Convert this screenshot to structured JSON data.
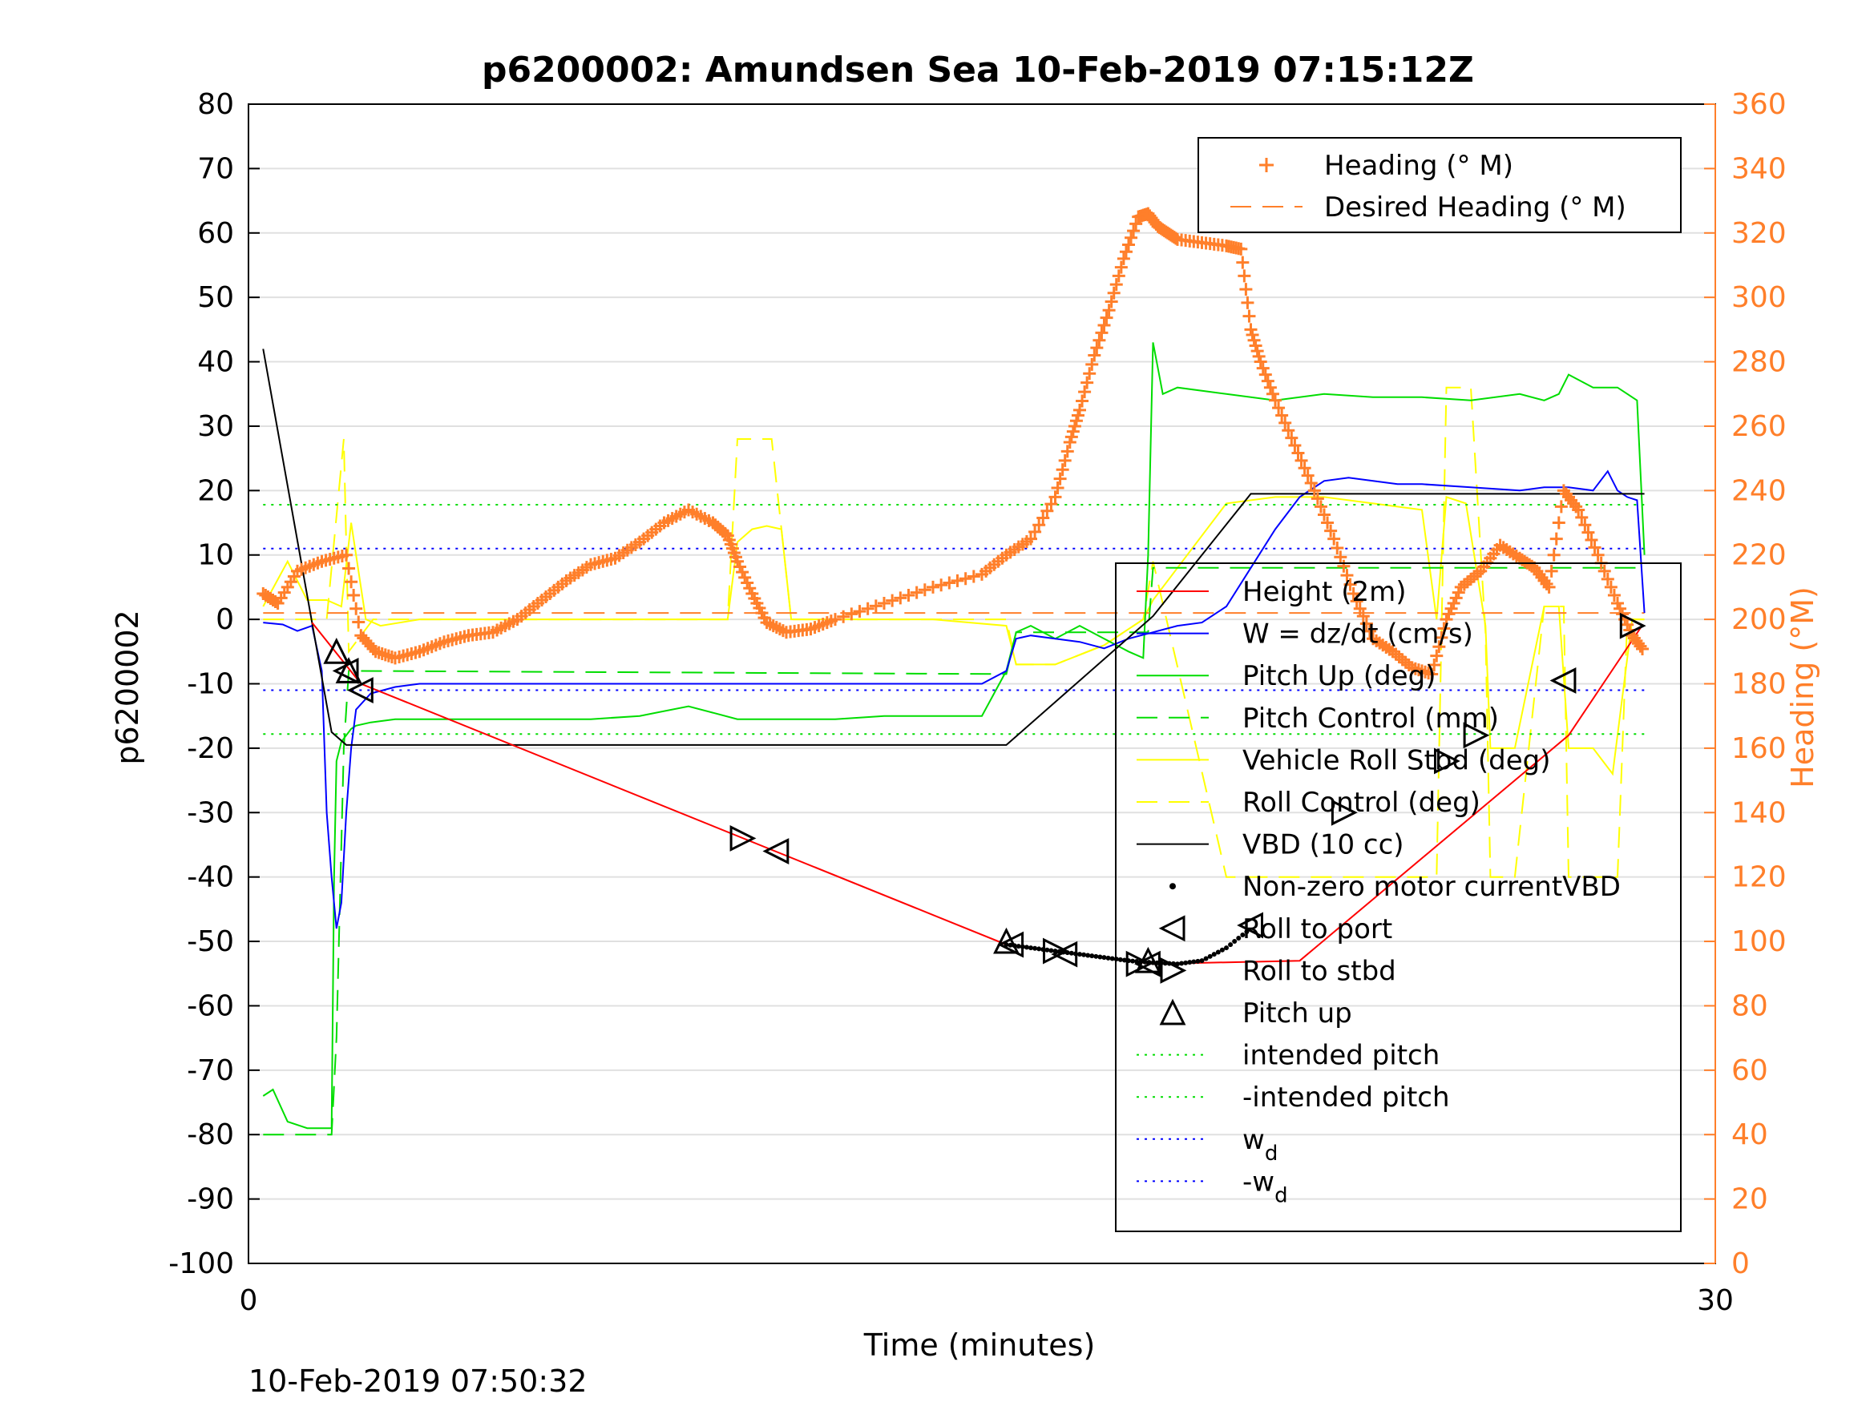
{
  "chart_data": {
    "type": "line",
    "title": "p6200002: Amundsen Sea 10-Feb-2019 07:15:12Z",
    "xlabel": "Time (minutes)",
    "ylabel": "p6200002",
    "y2label": "Heading (°M)",
    "xlim": [
      0,
      30
    ],
    "ylim": [
      -100,
      80
    ],
    "y2lim": [
      0,
      360
    ],
    "x_ticks": [
      "0",
      "30"
    ],
    "y_ticks": [
      "80",
      "70",
      "60",
      "50",
      "40",
      "30",
      "20",
      "10",
      "0",
      "-10",
      "-20",
      "-30",
      "-40",
      "-50",
      "-60",
      "-70",
      "-80",
      "-90",
      "-100"
    ],
    "y2_ticks": [
      "360",
      "340",
      "320",
      "300",
      "280",
      "260",
      "240",
      "220",
      "200",
      "180",
      "160",
      "140",
      "120",
      "100",
      "80",
      "60",
      "40",
      "20",
      "0"
    ],
    "grid": true,
    "footer_text": "10-Feb-2019 07:50:32",
    "legend_heading": [
      {
        "label": "Heading (° M)",
        "color": "#ff7f2a",
        "style": "plus"
      },
      {
        "label": "Desired Heading (° M)",
        "color": "#ff7f2a",
        "style": "dashed"
      }
    ],
    "legend_main": [
      {
        "label": "Height (2m)",
        "color": "#ff0000",
        "style": "solid"
      },
      {
        "label": "W = dz/dt (cm/s)",
        "color": "#0000ff",
        "style": "solid"
      },
      {
        "label": "Pitch Up (deg)",
        "color": "#00dd00",
        "style": "solid"
      },
      {
        "label": "Pitch Control (mm)",
        "color": "#00dd00",
        "style": "dashed"
      },
      {
        "label": "Vehicle Roll Stbd (deg)",
        "color": "#ffff00",
        "style": "solid"
      },
      {
        "label": "Roll Control (deg)",
        "color": "#ffff00",
        "style": "dashed"
      },
      {
        "label": "VBD (10 cc)",
        "color": "#000000",
        "style": "solid"
      },
      {
        "label": "Non-zero motor currentVBD",
        "color": "#000000",
        "style": "dot"
      },
      {
        "label": "Roll to port",
        "color": "#000000",
        "style": "tri-left"
      },
      {
        "label": "Roll to stbd",
        "color": "#000000",
        "style": "tri-right"
      },
      {
        "label": "Pitch up",
        "color": "#000000",
        "style": "tri-up"
      },
      {
        "label": "intended pitch",
        "color": "#00dd00",
        "style": "dotted"
      },
      {
        "label": "-intended pitch",
        "color": "#00dd00",
        "style": "dotted"
      },
      {
        "label": "w",
        "sub": "d",
        "color": "#0000ff",
        "style": "dotted"
      },
      {
        "label": "-w",
        "sub": "d",
        "color": "#0000ff",
        "style": "dotted"
      }
    ],
    "series": [
      {
        "name": "Height (2m)",
        "color": "#ff0000",
        "axis": "left",
        "style": "solid",
        "x": [
          1.3,
          2.3,
          15.5,
          18.5,
          21.5,
          27.0,
          28.5
        ],
        "y": [
          -0.5,
          -10,
          -50.5,
          -53.5,
          -53,
          -18,
          -1
        ]
      },
      {
        "name": "W = dz/dt (cm/s)",
        "color": "#0000ff",
        "axis": "left",
        "style": "solid",
        "x": [
          0.3,
          0.7,
          1.0,
          1.3,
          1.5,
          1.6,
          1.7,
          1.8,
          1.9,
          2.0,
          2.1,
          2.2,
          2.5,
          3.0,
          3.5,
          4.0,
          5.0,
          6.0,
          7.0,
          8.0,
          9.0,
          10.0,
          11.0,
          12.0,
          13.0,
          14.0,
          15.0,
          15.5,
          15.7,
          16.0,
          16.5,
          17.0,
          17.5,
          18.0,
          18.5,
          19.0,
          19.5,
          20.0,
          20.5,
          21.0,
          21.5,
          22.0,
          22.5,
          23.0,
          23.5,
          24.0,
          25.0,
          26.0,
          26.5,
          27.0,
          27.5,
          27.8,
          28.0,
          28.2,
          28.4,
          28.55
        ],
        "y": [
          -0.5,
          -0.8,
          -1.8,
          -1,
          -8,
          -30,
          -40,
          -48,
          -44,
          -30,
          -20,
          -14,
          -11.5,
          -10.5,
          -10,
          -10,
          -10,
          -10,
          -10,
          -10,
          -10,
          -10,
          -10,
          -10,
          -10,
          -10,
          -10,
          -8,
          -3,
          -2.5,
          -3,
          -3.5,
          -4.5,
          -3,
          -2,
          -1,
          -0.5,
          2,
          8,
          14,
          19,
          21.5,
          22,
          21.5,
          21,
          21,
          20.5,
          20,
          20.5,
          20.5,
          20,
          23,
          20,
          19,
          18.5,
          1
        ]
      },
      {
        "name": "Pitch Up (deg)",
        "color": "#00dd00",
        "axis": "left",
        "style": "solid",
        "x": [
          0.3,
          0.5,
          0.8,
          1.2,
          1.5,
          1.7,
          1.75,
          1.8,
          1.9,
          2.0,
          2.1,
          2.2,
          2.5,
          3.0,
          4.0,
          5.0,
          6.0,
          7.0,
          8.0,
          9.0,
          10.0,
          10.5,
          11.0,
          12.0,
          13.0,
          14.0,
          15.0,
          15.5,
          15.7,
          16.0,
          16.5,
          17.0,
          17.5,
          18.0,
          18.3,
          18.4,
          18.5,
          18.7,
          19.0,
          20.0,
          21.0,
          22.0,
          23.0,
          24.0,
          25.0,
          26.0,
          26.5,
          26.8,
          27.0,
          27.5,
          28.0,
          28.4,
          28.55
        ],
        "y": [
          -74,
          -73,
          -78,
          -79,
          -79,
          -79,
          -40,
          -22,
          -19,
          -18,
          -17,
          -16.5,
          -16,
          -15.5,
          -15.5,
          -15.5,
          -15.5,
          -15.5,
          -15,
          -13.5,
          -15.5,
          -15.5,
          -15.5,
          -15.5,
          -15,
          -15,
          -15,
          -8,
          -2,
          -1,
          -3,
          -1,
          -3,
          -5,
          -6,
          10,
          43,
          35,
          36,
          35,
          34,
          35,
          34.5,
          34.5,
          34,
          35,
          34,
          35,
          38,
          36,
          36,
          34,
          10
        ]
      },
      {
        "name": "VBD (10 cc)",
        "color": "#000000",
        "axis": "left",
        "style": "solid",
        "x": [
          0.3,
          1.7,
          2.0,
          15.5,
          18.5,
          20.5,
          28.55
        ],
        "y": [
          42,
          -17.5,
          -19.5,
          -19.5,
          0.5,
          19.5,
          19.5
        ]
      },
      {
        "name": "Vehicle Roll Stbd (deg)",
        "color": "#ffff00",
        "axis": "left",
        "style": "solid",
        "x": [
          0.3,
          0.8,
          1.2,
          1.6,
          1.9,
          2.1,
          2.4,
          2.7,
          3.5,
          5.0,
          7.0,
          9.0,
          9.8,
          10.0,
          10.3,
          10.6,
          10.9,
          11.1,
          12.5,
          14.0,
          15.5,
          15.7,
          16.5,
          17.5,
          18.3,
          18.5,
          19.0,
          20.0,
          21.0,
          22.0,
          23.0,
          24.0,
          24.3,
          24.5,
          24.9,
          25.3,
          25.4,
          25.9,
          26.5,
          26.8,
          27.0,
          27.5,
          27.9,
          28.3,
          28.55
        ],
        "y": [
          2,
          9,
          3,
          3,
          2,
          15,
          0,
          -1,
          0,
          0,
          0,
          0,
          0,
          12,
          14,
          14.5,
          14,
          0,
          0,
          0,
          -1,
          -7,
          -7,
          -4,
          0,
          3,
          8,
          18,
          19,
          19,
          18,
          17,
          0,
          19,
          18,
          -1,
          -20,
          -20,
          2,
          2,
          -20,
          -20,
          -24,
          0,
          0
        ]
      },
      {
        "name": "Roll Control (deg)",
        "color": "#ffff00",
        "axis": "left",
        "style": "dashed",
        "x": [
          0.3,
          1.6,
          1.95,
          2.05,
          2.35,
          2.55,
          3.0,
          9.8,
          10.0,
          10.7,
          11.1,
          15.5,
          15.7,
          16.5,
          17.5,
          18.3,
          18.5,
          20.0,
          21.0,
          23.0,
          24.3,
          24.5,
          25.0,
          25.3,
          25.4,
          25.9,
          26.5,
          26.9,
          27.0,
          28.0,
          28.2,
          28.55
        ],
        "y": [
          0,
          0,
          28,
          -5,
          -2,
          0,
          0,
          0,
          28,
          28,
          0,
          0,
          -7,
          -7,
          -4,
          0,
          9,
          -40,
          -40,
          -40,
          -40,
          36,
          36,
          -2,
          -40,
          -40,
          2,
          2,
          -40,
          -40,
          0,
          0
        ]
      },
      {
        "name": "Heading (° M)",
        "color": "#ff7f2a",
        "axis": "right",
        "style": "plus",
        "x": [
          0.3,
          0.6,
          1.0,
          1.5,
          2.0,
          2.3,
          2.6,
          3.0,
          3.5,
          4.0,
          4.5,
          5.0,
          5.5,
          6.0,
          6.5,
          7.0,
          7.5,
          8.0,
          8.5,
          9.0,
          9.5,
          9.8,
          10.0,
          10.3,
          10.6,
          11.0,
          11.5,
          12.0,
          13.0,
          14.0,
          15.0,
          15.5,
          16.0,
          16.5,
          16.8,
          17.0,
          17.3,
          17.6,
          17.9,
          18.2,
          18.4,
          18.6,
          18.8,
          19.0,
          19.5,
          20.0,
          20.3,
          20.5,
          20.7,
          21.0,
          21.4,
          21.8,
          22.2,
          22.6,
          23.0,
          23.4,
          23.8,
          24.2,
          24.5,
          24.8,
          25.2,
          25.6,
          26.0,
          26.3,
          26.6,
          26.9,
          27.2,
          27.6,
          28.0,
          28.3,
          28.55
        ],
        "y": [
          208,
          205,
          215,
          218,
          220,
          195,
          190,
          188,
          190,
          193,
          195,
          196,
          200,
          206,
          212,
          217,
          219,
          224,
          230,
          234,
          230,
          226,
          218,
          208,
          199,
          196,
          197,
          200,
          205,
          210,
          214,
          220,
          225,
          238,
          255,
          265,
          282,
          296,
          312,
          325,
          326,
          322,
          320,
          318,
          317,
          316,
          315,
          290,
          280,
          268,
          254,
          240,
          225,
          208,
          194,
          190,
          185,
          183,
          200,
          210,
          215,
          223,
          219,
          216,
          210,
          240,
          234,
          220,
          205,
          195,
          190
        ]
      },
      {
        "name": "Desired Heading (° M)",
        "color": "#ff7f2a",
        "axis": "right",
        "style": "dashed",
        "x": [
          0.3,
          28.55
        ],
        "y": [
          202,
          202
        ]
      },
      {
        "name": "intended pitch",
        "color": "#00dd00",
        "axis": "left",
        "style": "dotted",
        "x": [
          0.3,
          28.55
        ],
        "y": [
          17.8,
          17.8
        ]
      },
      {
        "name": "-intended pitch",
        "color": "#00dd00",
        "axis": "left",
        "style": "dotted",
        "x": [
          0.3,
          28.55
        ],
        "y": [
          -17.8,
          -17.8
        ]
      },
      {
        "name": "w",
        "color": "#0000ff",
        "axis": "left",
        "style": "dotted",
        "x": [
          0.3,
          28.55
        ],
        "y": [
          11,
          11
        ]
      },
      {
        "name": "-w",
        "color": "#0000ff",
        "axis": "left",
        "style": "dotted",
        "x": [
          0.3,
          28.55
        ],
        "y": [
          -11,
          -11
        ]
      },
      {
        "name": "Pitch Control (mm)",
        "color": "#00dd00",
        "axis": "left",
        "style": "dashed",
        "x": [
          0.3,
          1.7,
          1.8,
          1.95,
          2.05,
          15.5,
          15.7,
          18.4,
          18.5,
          28.55
        ],
        "y": [
          -80,
          -80,
          -65,
          -20,
          -8,
          -8.5,
          -2,
          -2,
          8,
          8
        ]
      },
      {
        "name": "Non-zero motor currentVBD",
        "color": "#000000",
        "axis": "left",
        "style": "dot",
        "x": [
          15.5,
          16.0,
          16.5,
          17.0,
          17.5,
          18.0,
          18.5,
          19.0,
          19.5,
          20.0,
          20.5
        ],
        "y": [
          -50.5,
          -51,
          -51.5,
          -52,
          -52.5,
          -53,
          -53.3,
          -53.5,
          -53,
          -51,
          -48
        ]
      }
    ],
    "markers_roll_port": {
      "x": [
        2.0,
        2.3,
        10.8,
        15.6,
        16.7,
        18.4,
        20.5,
        26.9
      ],
      "y": [
        -8,
        -11,
        -36,
        -50.5,
        -52,
        -53.5,
        -47.5,
        -9.5
      ]
    },
    "markers_roll_stbd": {
      "x": [
        10.1,
        16.5,
        18.2,
        22.4,
        24.5,
        25.1,
        28.3
      ],
      "y": [
        -34,
        -51.5,
        -53.5,
        -30,
        -22,
        -18,
        -1
      ]
    },
    "markers_pitch_up": {
      "x": [
        1.8,
        2.05,
        15.5,
        18.4
      ],
      "y": [
        -5,
        -8,
        -50,
        -53
      ]
    }
  }
}
